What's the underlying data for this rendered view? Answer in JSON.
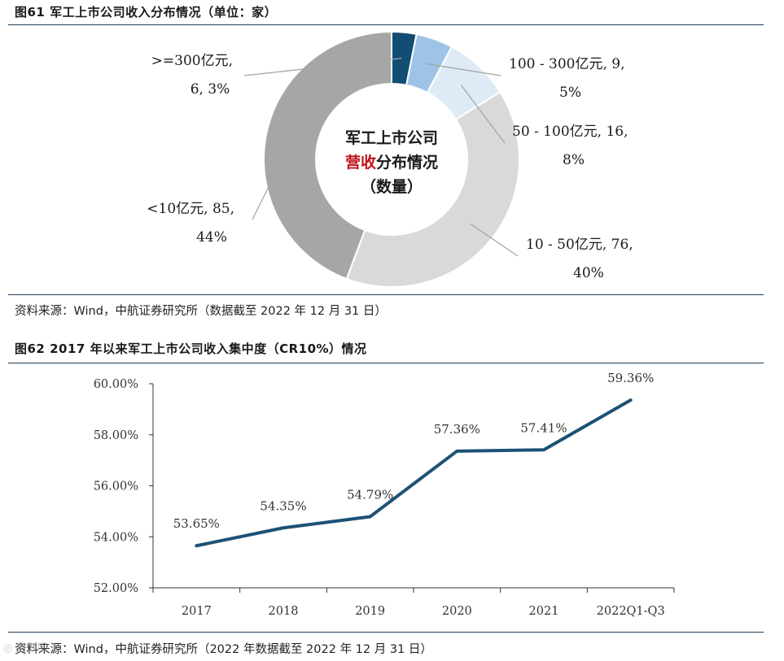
{
  "figure1": {
    "title": "图61  军工上市公司收入分布情况（单位：家）",
    "source": "资料来源：Wind，中航证券研究所（数据截至 2022 年 12 月 31 日）",
    "center_lines": [
      {
        "parts": [
          {
            "text": "军工上市公司",
            "accent": false
          }
        ]
      },
      {
        "parts": [
          {
            "text": "营收",
            "accent": true
          },
          {
            "text": "分布情况",
            "accent": false
          }
        ]
      },
      {
        "parts": [
          {
            "text": "（数量）",
            "accent": false
          }
        ]
      }
    ]
  },
  "figure2": {
    "title": "图62  2017 年以来军工上市公司收入集中度（CR10%）情况",
    "source": "资料来源：Wind，中航证券研究所（2022 年数据截至 2022 年 12 月 31 日）"
  },
  "colors": {
    "accent_red": "#c0121a",
    "line": "#1b5275",
    "slices": [
      "#124d73",
      "#9dc3e6",
      "#deebf7",
      "#d9d9d9",
      "#a6a6a6"
    ]
  },
  "chart_data": [
    {
      "type": "pie",
      "variant": "donut",
      "unit": "家",
      "slices": [
        {
          "label": ">=300亿元",
          "value": 6,
          "percent": "3%",
          "color": "#124d73",
          "line1": ">=300亿元,",
          "line2": "6, 3%"
        },
        {
          "label": "100 - 300亿元",
          "value": 9,
          "percent": "5%",
          "color": "#9dc3e6",
          "line1": "100 - 300亿元, 9,",
          "line2": "5%"
        },
        {
          "label": "50 - 100亿元",
          "value": 16,
          "percent": "8%",
          "color": "#deebf7",
          "line1": "50 - 100亿元, 16,",
          "line2": "8%"
        },
        {
          "label": "10 - 50亿元",
          "value": 76,
          "percent": "40%",
          "color": "#d9d9d9",
          "line1": "10 - 50亿元, 76,",
          "line2": "40%"
        },
        {
          "label": "<10亿元",
          "value": 85,
          "percent": "44%",
          "color": "#a6a6a6",
          "line1": "<10亿元, 85,",
          "line2": "44%"
        }
      ]
    },
    {
      "type": "line",
      "categories": [
        "2017",
        "2018",
        "2019",
        "2020",
        "2021",
        "2022Q1-Q3"
      ],
      "values": [
        53.65,
        54.35,
        54.79,
        57.36,
        57.41,
        59.36
      ],
      "data_labels": [
        "53.65%",
        "54.35%",
        "54.79%",
        "57.36%",
        "57.41%",
        "59.36%"
      ],
      "ylim": [
        52,
        60
      ],
      "yticks": [
        "52.00%",
        "54.00%",
        "56.00%",
        "58.00%",
        "60.00%"
      ],
      "grid": false,
      "legend": "none"
    }
  ]
}
